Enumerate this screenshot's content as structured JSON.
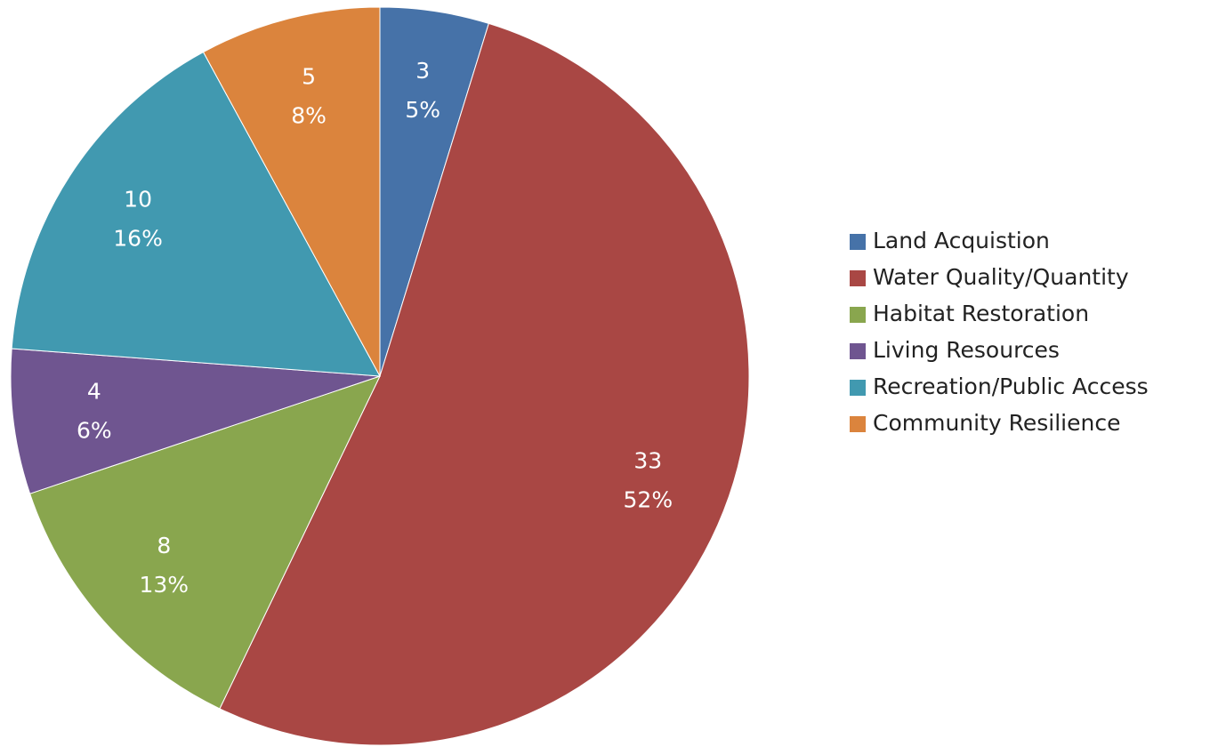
{
  "chart_data": {
    "type": "pie",
    "categories": [
      "Land Acquistion",
      "Water Quality/Quantity",
      "Habitat Restoration",
      "Living Resources",
      "Recreation/Public Access",
      "Community Resilience"
    ],
    "values": [
      3,
      33,
      8,
      4,
      10,
      5
    ],
    "percentages": [
      5,
      52,
      13,
      6,
      16,
      8
    ],
    "percentage_labels": [
      "5%",
      "52%",
      "13%",
      "6%",
      "16%",
      "8%"
    ],
    "colors": [
      "#4672a8",
      "#a94744",
      "#89a64e",
      "#6f5590",
      "#4199b0",
      "#db843d"
    ],
    "legend": "right"
  }
}
